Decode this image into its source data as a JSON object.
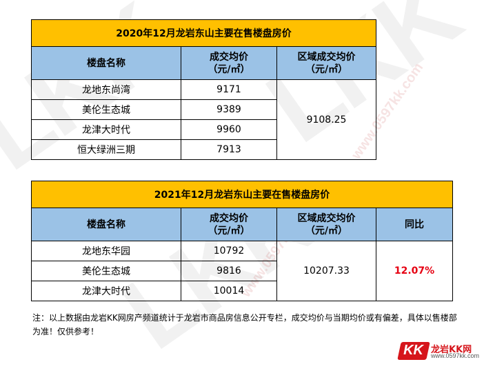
{
  "table2020": {
    "title": "2020年12月龙岩东山主要在售楼盘房价",
    "headers": {
      "name": "楼盘名称",
      "avg_price": "成交均价",
      "avg_price_unit": "（元/㎡）",
      "region_avg": "区域成交均价",
      "region_avg_unit": "（元/㎡）"
    },
    "rows": [
      {
        "name": "龙地东尚湾",
        "price": "9171"
      },
      {
        "name": "美伦生态城",
        "price": "9389"
      },
      {
        "name": "龙津大时代",
        "price": "9960"
      },
      {
        "name": "恒大绿洲三期",
        "price": "7913"
      }
    ],
    "region_avg": "9108.25"
  },
  "table2021": {
    "title": "2021年12月龙岩东山主要在售楼盘房价",
    "headers": {
      "name": "楼盘名称",
      "avg_price": "成交均价",
      "avg_price_unit": "（元/㎡）",
      "region_avg": "区域成交均价",
      "region_avg_unit": "（元/㎡）",
      "yoy": "同比"
    },
    "rows": [
      {
        "name": "龙地东华园",
        "price": "10792"
      },
      {
        "name": "美伦生态城",
        "price": "9816"
      },
      {
        "name": "龙津大时代",
        "price": "10014"
      }
    ],
    "region_avg": "10207.33",
    "yoy": "12.07%"
  },
  "note": "注：以上数据由龙岩KK网房产频道统计于龙岩市商品房信息公开专栏，成交均价与当期均价或有偏差，具体以售楼部为准！仅供参考！",
  "logo": {
    "mark": "KK",
    "name": "龙岩KK网",
    "url": "www.0597kk.com"
  },
  "watermark": {
    "text": "LKK",
    "url": "www.0597kk.com"
  },
  "colors": {
    "title_bg": "#ffc000",
    "header_bg": "#9bc2e6",
    "growth": "#e60012",
    "brand": "#d6161c"
  }
}
